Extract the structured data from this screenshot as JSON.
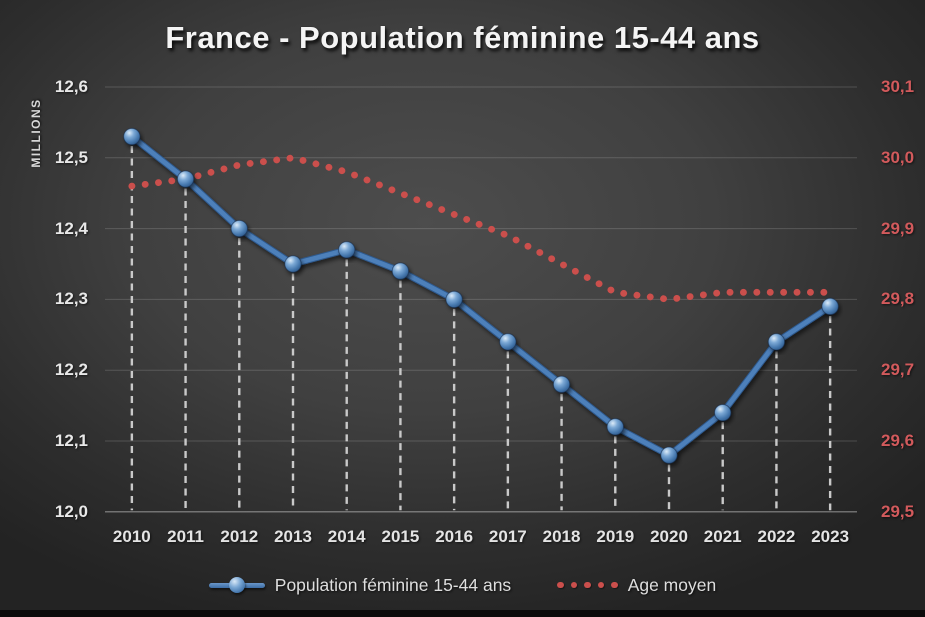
{
  "chart_data": {
    "type": "line",
    "title": "France - Population féminine 15-44 ans",
    "categories": [
      "2010",
      "2011",
      "2012",
      "2013",
      "2014",
      "2015",
      "2016",
      "2017",
      "2018",
      "2019",
      "2020",
      "2021",
      "2022",
      "2023"
    ],
    "series": [
      {
        "name": "Population féminine 15-44 ans",
        "axis": "left",
        "style": "solid_line_with_sphere_markers",
        "color": "#4d80ba",
        "values": [
          12.53,
          12.47,
          12.4,
          12.35,
          12.37,
          12.34,
          12.3,
          12.24,
          12.18,
          12.12,
          12.08,
          12.14,
          12.24,
          12.29
        ]
      },
      {
        "name": "Age moyen",
        "axis": "right",
        "style": "dotted",
        "color": "#cb4f4c",
        "values": [
          29.96,
          29.97,
          29.99,
          30.0,
          29.98,
          29.95,
          29.92,
          29.89,
          29.85,
          29.81,
          29.8,
          29.81,
          29.81,
          29.81
        ]
      }
    ],
    "left_axis": {
      "label": "MILLIONS",
      "min": 12.0,
      "max": 12.6,
      "tick_labels": [
        "12,6",
        "12,5",
        "12,4",
        "12,3",
        "12,2",
        "12,1",
        "12,0"
      ]
    },
    "right_axis": {
      "min": 29.5,
      "max": 30.1,
      "tick_labels": [
        "30,1",
        "30,0",
        "29,9",
        "29,8",
        "29,7",
        "29,6",
        "29,5"
      ]
    },
    "grid": true,
    "drop_lines": true,
    "legend_position": "bottom"
  },
  "colors": {
    "background_center": "#4d4d4d",
    "background_edge": "#232323",
    "gridline": "rgba(255,255,255,0.16)",
    "axis_line": "rgba(255,255,255,0.45)",
    "drop_line": "#c9c9c9",
    "blue_line": "#4d80ba",
    "blue_line_dark": "#2f5a8f",
    "red_dots": "#cb4f4c",
    "left_tick_text": "#e8e8e8",
    "right_tick_text": "#d25a5c",
    "title_text": "#f4f4f4"
  }
}
